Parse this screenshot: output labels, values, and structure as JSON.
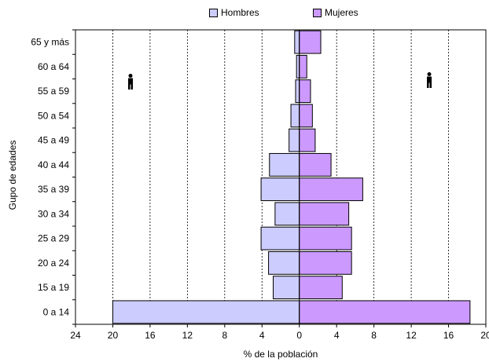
{
  "chart_data": {
    "type": "bar",
    "orientation": "horizontal",
    "subtype": "population-pyramid",
    "categories": [
      "0 a 14",
      "15 a 19",
      "20 a 24",
      "25 a 29",
      "30 a 34",
      "35 a 39",
      "40 a 44",
      "45 a 49",
      "50 a 54",
      "55 a 59",
      "60 a 64",
      "65 y más"
    ],
    "series": [
      {
        "name": "Hombres",
        "color": "#ccccff",
        "values": [
          -20.0,
          -2.8,
          -3.3,
          -4.1,
          -2.6,
          -4.1,
          -3.2,
          -1.1,
          -0.9,
          -0.4,
          -0.3,
          -0.5
        ]
      },
      {
        "name": "Mujeres",
        "color": "#cc99ff",
        "values": [
          18.3,
          4.6,
          5.6,
          5.6,
          5.3,
          6.8,
          3.4,
          1.7,
          1.4,
          1.2,
          0.8,
          2.3
        ]
      }
    ],
    "xlabel": "% de la población",
    "ylabel": "Gupo de edades",
    "xlim": [
      -24,
      20
    ],
    "x_ticks": [
      -24,
      -20,
      -16,
      -12,
      -8,
      -4,
      0,
      4,
      8,
      12,
      16,
      20
    ],
    "x_tick_labels": [
      "24",
      "20",
      "16",
      "12",
      "8",
      "4",
      "0",
      "4",
      "8",
      "12",
      "16",
      "20"
    ],
    "grid": "vertical-dashed",
    "legend": "top",
    "icons": [
      "male-figure-icon",
      "female-figure-icon"
    ]
  }
}
